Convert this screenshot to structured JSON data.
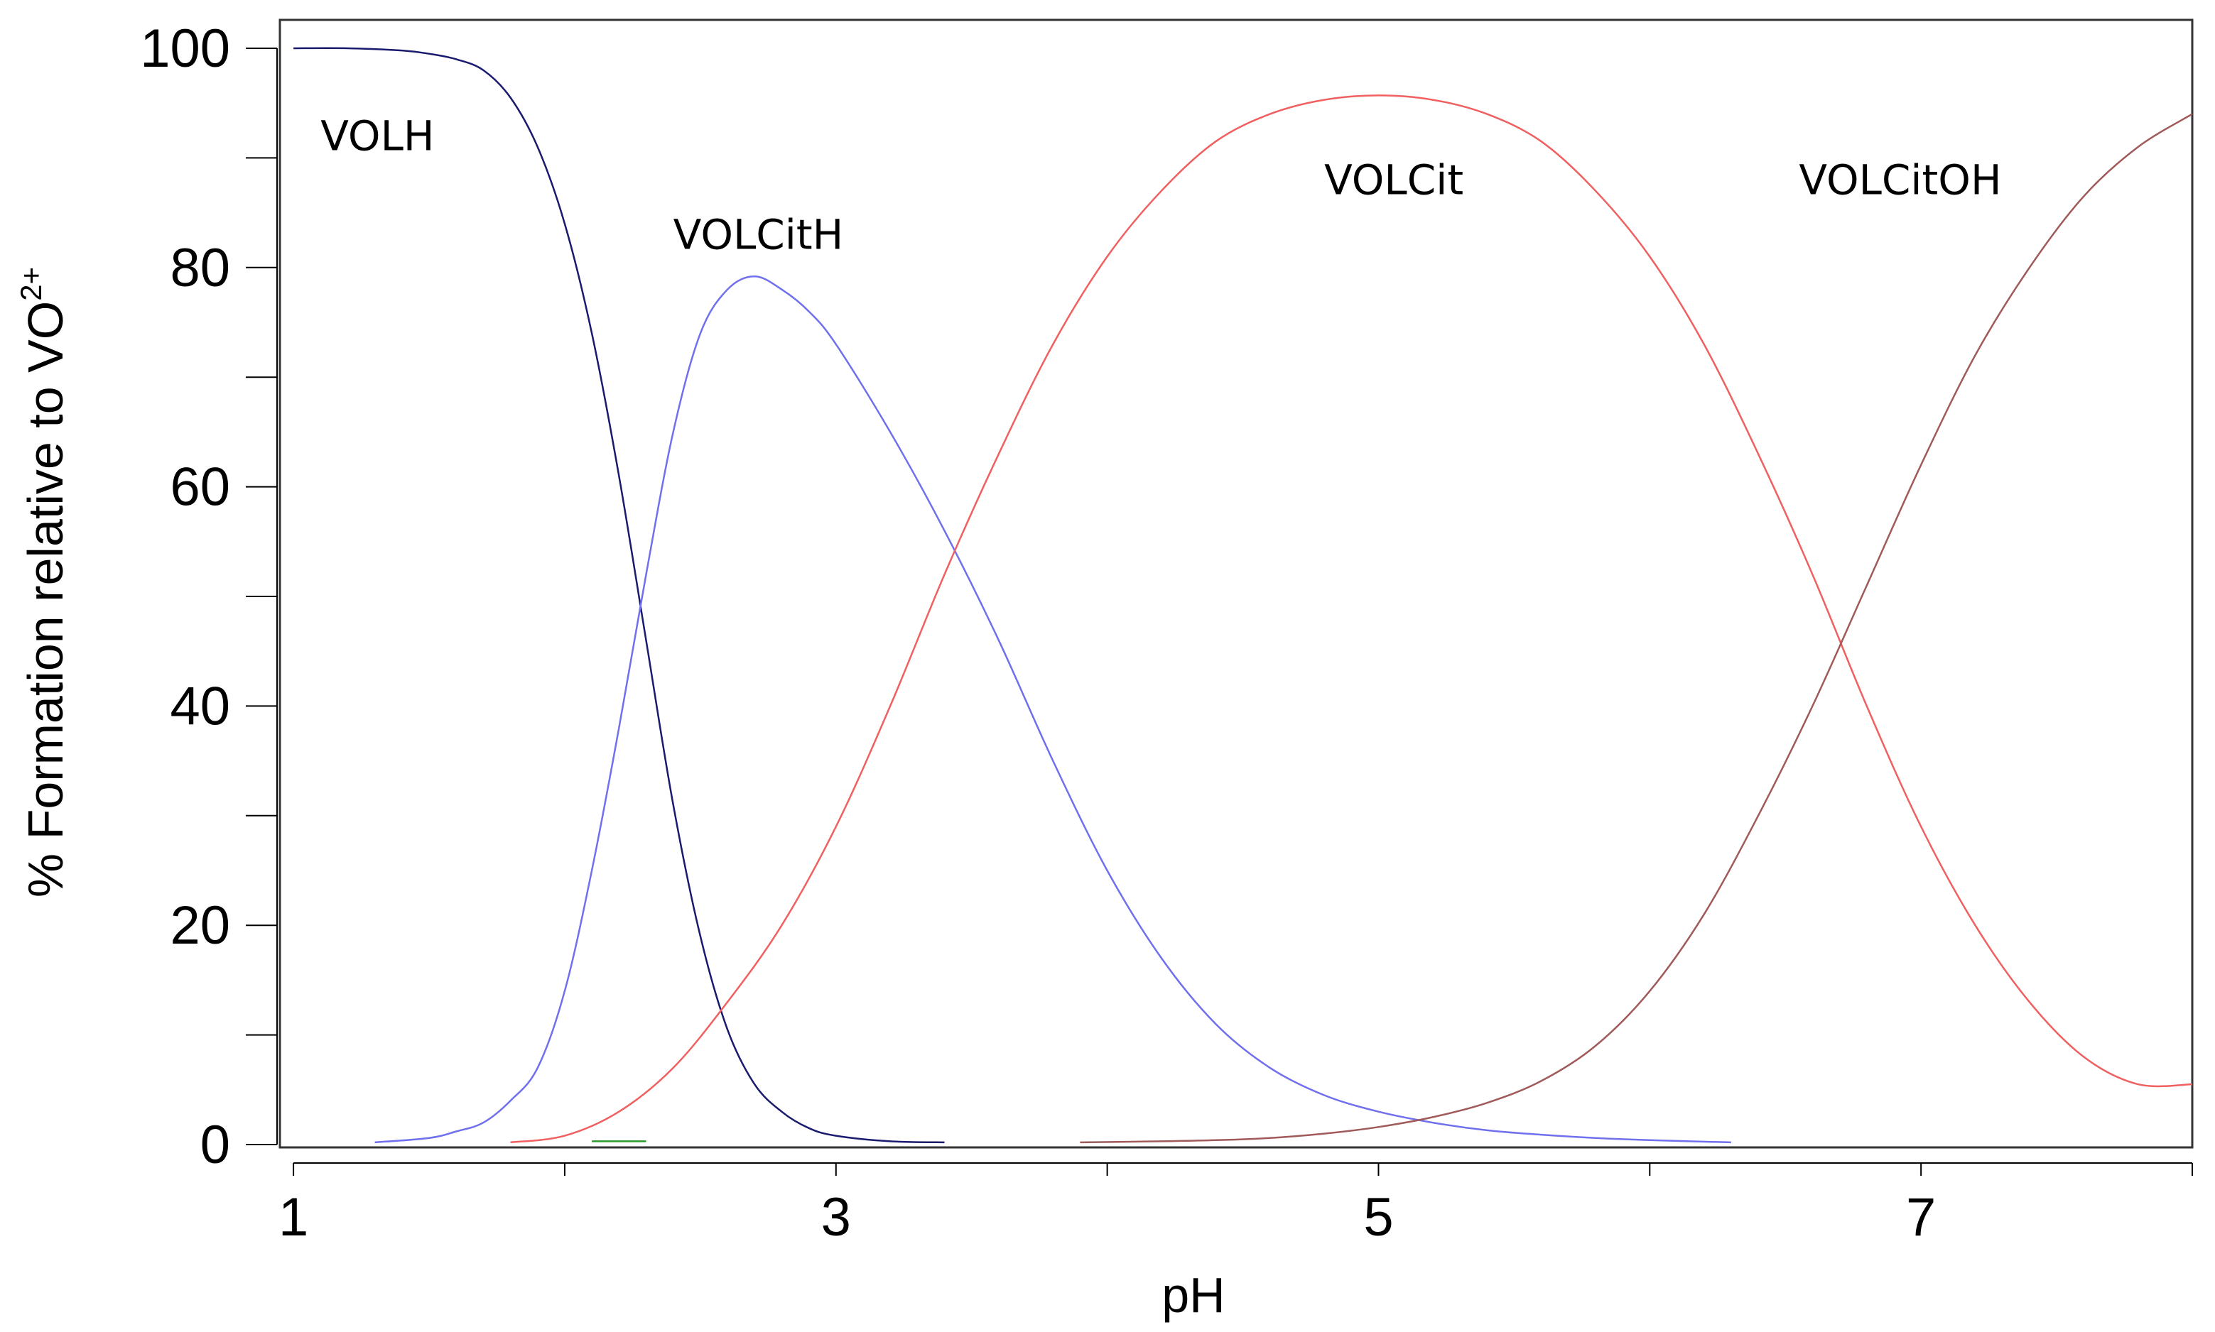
{
  "chart_data": {
    "type": "line",
    "xlabel": "pH",
    "ylabel": {
      "text": "% Formation relative to VO",
      "sup": "2+"
    },
    "xlim": [
      0.95,
      8.0
    ],
    "ylim": [
      0,
      100
    ],
    "x_tick_labels": [
      "1",
      "3",
      "5",
      "7"
    ],
    "x_tick_values": [
      1,
      3,
      5,
      7
    ],
    "x_minor_ticks": [
      1,
      2,
      3,
      4,
      5,
      6,
      7,
      8
    ],
    "y_tick_labels": [
      "0",
      "20",
      "40",
      "60",
      "80",
      "100"
    ],
    "y_tick_values": [
      0,
      20,
      40,
      60,
      80,
      100
    ],
    "y_minor_ticks": [
      0,
      10,
      20,
      30,
      40,
      50,
      60,
      70,
      80,
      90,
      100
    ],
    "grid": false,
    "legend": "none",
    "series": [
      {
        "name": "VOLH",
        "color": "#1a1a6e",
        "label_at": [
          1.1,
          92
        ],
        "x": [
          1.0,
          1.2,
          1.4,
          1.5,
          1.6,
          1.7,
          1.8,
          1.9,
          2.0,
          2.1,
          2.2,
          2.3,
          2.4,
          2.5,
          2.6,
          2.7,
          2.8,
          2.9,
          3.0,
          3.2,
          3.4
        ],
        "y": [
          100,
          100,
          99.8,
          99.5,
          99.0,
          98.0,
          95.5,
          91.0,
          84.0,
          74.0,
          61.0,
          46.0,
          31.0,
          19.0,
          10.5,
          5.5,
          3.0,
          1.5,
          0.8,
          0.3,
          0.2
        ]
      },
      {
        "name": "VOLCitH",
        "color": "#7070ee",
        "label_at": [
          2.4,
          83
        ],
        "x": [
          1.3,
          1.5,
          1.6,
          1.7,
          1.8,
          1.9,
          2.0,
          2.1,
          2.2,
          2.3,
          2.4,
          2.5,
          2.6,
          2.7,
          2.8,
          2.9,
          3.0,
          3.2,
          3.4,
          3.6,
          3.8,
          4.0,
          4.2,
          4.4,
          4.6,
          4.8,
          5.0,
          5.2,
          5.4,
          5.6,
          5.8,
          6.0,
          6.3
        ],
        "y": [
          0.2,
          0.6,
          1.2,
          2.0,
          4.0,
          7.0,
          14.0,
          25.0,
          38.0,
          52.0,
          65.0,
          74.0,
          78.0,
          79.2,
          78.0,
          76.0,
          73.0,
          65.0,
          56.0,
          46.0,
          35.0,
          25.0,
          17.0,
          11.0,
          7.0,
          4.5,
          3.0,
          2.0,
          1.3,
          0.9,
          0.6,
          0.4,
          0.2
        ]
      },
      {
        "name": "VOLCit",
        "color": "#f06060",
        "label_at": [
          4.8,
          88
        ],
        "x": [
          1.8,
          2.0,
          2.2,
          2.4,
          2.6,
          2.8,
          3.0,
          3.2,
          3.4,
          3.6,
          3.8,
          4.0,
          4.2,
          4.4,
          4.6,
          4.8,
          5.0,
          5.2,
          5.4,
          5.6,
          5.8,
          6.0,
          6.2,
          6.4,
          6.6,
          6.8,
          7.0,
          7.2,
          7.4,
          7.6,
          7.8,
          8.0
        ],
        "y": [
          0.2,
          0.8,
          3.0,
          7.0,
          13.0,
          20.0,
          29.0,
          40.0,
          52.0,
          63.0,
          73.0,
          81.0,
          87.0,
          91.5,
          94.0,
          95.3,
          95.7,
          95.3,
          94.0,
          91.5,
          87.0,
          81.0,
          73.0,
          63.0,
          52.0,
          40.0,
          29.0,
          20.0,
          13.0,
          8.0,
          5.5,
          5.5
        ]
      },
      {
        "name": "VOLCitOH",
        "color": "#a05a5a",
        "label_at": [
          6.55,
          88
        ],
        "x": [
          3.9,
          4.2,
          4.4,
          4.6,
          4.8,
          5.0,
          5.2,
          5.4,
          5.6,
          5.8,
          6.0,
          6.2,
          6.4,
          6.6,
          6.8,
          7.0,
          7.2,
          7.4,
          7.6,
          7.8,
          8.0
        ],
        "y": [
          0.2,
          0.3,
          0.4,
          0.6,
          1.0,
          1.6,
          2.5,
          3.8,
          5.8,
          9.0,
          14.0,
          21.0,
          30.0,
          40.0,
          51.0,
          62.0,
          72.0,
          80.0,
          86.5,
          91.0,
          94.0
        ]
      },
      {
        "name": "",
        "color": "#2a9a2a",
        "label_at": null,
        "x": [
          2.1,
          2.3
        ],
        "y": [
          0.3,
          0.3
        ]
      }
    ]
  }
}
